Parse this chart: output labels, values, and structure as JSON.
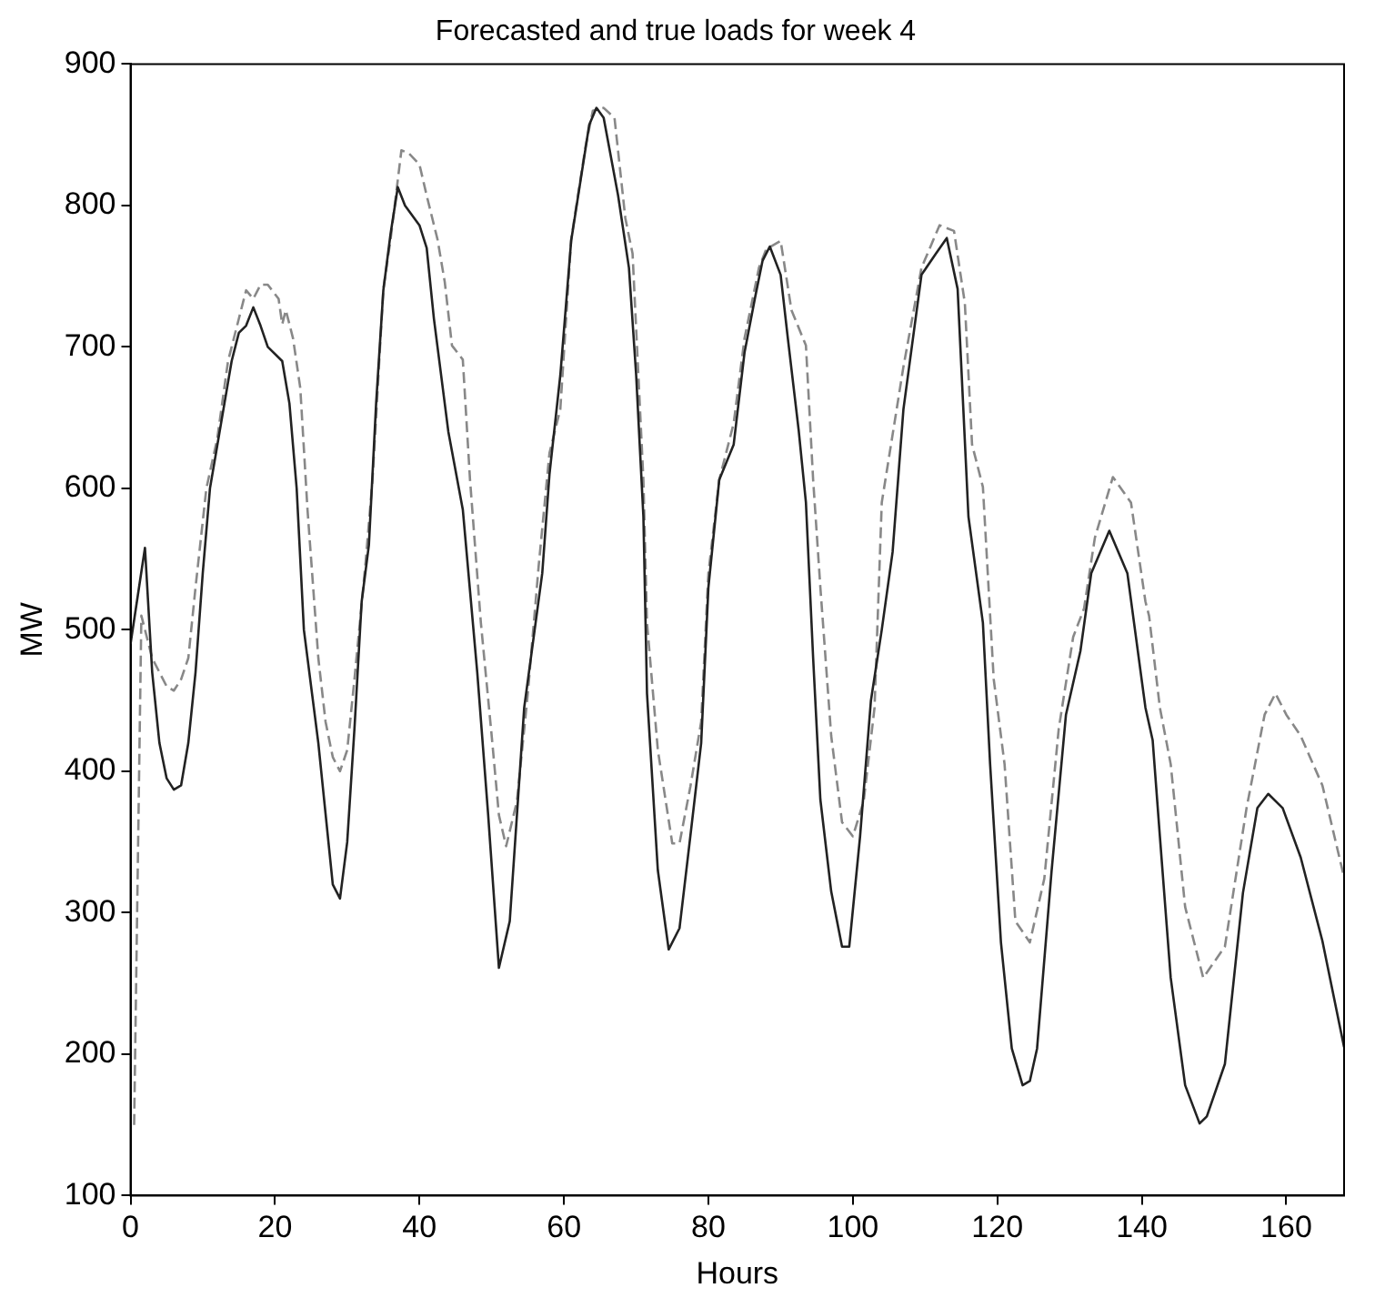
{
  "chart_data": {
    "type": "line",
    "title": "Forecasted and true loads for week 4",
    "xlabel": "Hours",
    "ylabel": "MW",
    "xlim": [
      0,
      168
    ],
    "xticks": [
      0,
      20,
      40,
      60,
      80,
      100,
      120,
      140,
      160
    ],
    "ylim": [
      100,
      900
    ],
    "yticks": [
      100,
      200,
      300,
      400,
      500,
      600,
      700,
      800,
      900
    ],
    "grid": false,
    "legend": false,
    "marker": "none",
    "series": [
      {
        "color": "#222222",
        "line_style": "solid",
        "x": [
          0,
          2,
          3,
          4,
          5,
          6,
          7,
          8,
          9,
          10,
          11,
          12,
          13,
          14,
          15,
          16,
          17,
          18,
          19,
          21,
          22,
          23,
          24,
          26,
          27,
          28,
          29,
          30,
          31,
          32,
          33,
          34,
          35,
          36,
          37,
          38,
          40,
          41,
          42,
          44,
          46,
          48,
          49.5,
          51,
          52.5,
          54.5,
          57,
          58,
          59.5,
          61,
          63.5,
          64.5,
          65.5,
          67.5,
          69,
          70,
          71,
          71.5,
          73,
          74.5,
          76,
          77.5,
          79,
          80,
          81.5,
          83.5,
          85,
          86.5,
          87.5,
          88.5,
          90,
          91,
          92.5,
          93.5,
          94.5,
          95.5,
          97,
          98.5,
          99.5,
          101,
          102.5,
          104,
          105.5,
          107,
          109.5,
          111.5,
          113,
          114.5,
          116,
          118,
          119,
          120.5,
          122,
          123.5,
          124.5,
          125.5,
          127.5,
          129.5,
          131.5,
          133,
          135.5,
          138,
          140.5,
          141.5,
          142.5,
          144,
          146,
          148,
          149,
          151.5,
          154,
          156,
          157.5,
          159.5,
          162,
          165,
          168
        ],
        "values": [
          490,
          558,
          470,
          420,
          395,
          387,
          390,
          420,
          470,
          540,
          600,
          630,
          660,
          690,
          710,
          715,
          728,
          715,
          700,
          690,
          660,
          600,
          500,
          420,
          370,
          320,
          310,
          350,
          430,
          520,
          560,
          660,
          740,
          780,
          813,
          800,
          786,
          770,
          720,
          640,
          585,
          470,
          370,
          261,
          294,
          445,
          540,
          610,
          680,
          775,
          857,
          869,
          862,
          807,
          756,
          680,
          580,
          455,
          330,
          274,
          289,
          354,
          420,
          530,
          606,
          631,
          696,
          736,
          761,
          771,
          751,
          706,
          641,
          590,
          480,
          380,
          315,
          276,
          276,
          354,
          450,
          500,
          555,
          656,
          751,
          766,
          777,
          741,
          580,
          505,
          405,
          279,
          204,
          178,
          181,
          204,
          329,
          440,
          485,
          540,
          570,
          540,
          445,
          422,
          354,
          254,
          178,
          151,
          156,
          193,
          314,
          374,
          384,
          374,
          339,
          280,
          205
        ]
      },
      {
        "color": "#888888",
        "line_style": "dashed",
        "x": [
          0.5,
          1.5,
          3,
          5,
          6,
          7,
          8,
          9,
          10.5,
          12,
          13.5,
          15,
          16,
          17,
          18,
          19,
          20.5,
          21,
          21.5,
          22.5,
          23.5,
          24.5,
          26,
          27,
          28,
          29,
          30,
          31,
          32.5,
          33.5,
          35,
          36,
          37.5,
          38.5,
          40,
          41,
          42.5,
          43.5,
          44.5,
          46,
          47,
          48.5,
          50,
          51,
          52,
          53.5,
          55,
          56.5,
          58,
          59.5,
          61,
          63,
          64,
          65.5,
          67,
          68.5,
          69.5,
          71,
          71.5,
          73,
          75,
          76,
          77.5,
          79,
          80,
          81.5,
          83.5,
          85,
          87,
          88,
          90,
          91.5,
          93.5,
          94.5,
          95.5,
          97,
          98.5,
          100,
          101.5,
          103,
          104,
          107,
          109.5,
          112,
          114,
          115.5,
          116.5,
          118,
          119.5,
          121,
          122.5,
          124.5,
          126.5,
          128.5,
          130.5,
          132,
          133.5,
          136,
          138.5,
          140.5,
          141,
          142.5,
          144,
          146,
          148.5,
          151.5,
          154.5,
          157,
          158.5,
          160,
          162,
          165,
          168
        ],
        "values": [
          150,
          510,
          480,
          460,
          457,
          465,
          480,
          530,
          600,
          635,
          690,
          720,
          740,
          734,
          744,
          744,
          734,
          716,
          726,
          706,
          671,
          585,
          480,
          435,
          410,
          400,
          415,
          465,
          545,
          606,
          741,
          776,
          839,
          837,
          829,
          807,
          776,
          746,
          701,
          691,
          606,
          505,
          425,
          369,
          347,
          379,
          455,
          545,
          625,
          656,
          776,
          842,
          867,
          869,
          862,
          791,
          766,
          606,
          505,
          415,
          349,
          349,
          389,
          435,
          540,
          606,
          646,
          706,
          756,
          769,
          775,
          726,
          701,
          606,
          530,
          425,
          364,
          354,
          379,
          445,
          590,
          686,
          756,
          786,
          782,
          731,
          631,
          601,
          465,
          405,
          294,
          279,
          324,
          430,
          495,
          515,
          565,
          608,
          590,
          520,
          510,
          445,
          405,
          304,
          254,
          276,
          374,
          440,
          455,
          440,
          425,
          390,
          325
        ]
      }
    ]
  }
}
